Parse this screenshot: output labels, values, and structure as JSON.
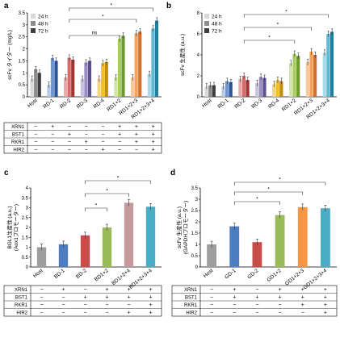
{
  "chart_data": [
    {
      "panel": "a",
      "type": "bar",
      "ylabel": "scFv タイター (mg/L)",
      "ylim": [
        0,
        3.5
      ],
      "yticks": [
        0,
        0.5,
        1,
        1.5,
        2,
        2.5,
        3,
        3.5
      ],
      "tick_labels": [
        "0",
        "0.5",
        "1",
        "1.5",
        "2",
        "2.5",
        "3",
        "3.5"
      ],
      "categories": [
        "Host",
        "RD-1",
        "RD-2",
        "RD-3",
        "RD-4",
        "RD1+2",
        "RD1+2+3",
        "RD1+2+3+4"
      ],
      "legend": [
        "24 h",
        "48 h",
        "72 h"
      ],
      "legend_position": "top-left",
      "series": [
        {
          "name": "24 h",
          "values": [
            0.75,
            0.5,
            0.8,
            0.75,
            0.75,
            0.8,
            0.8,
            0.95
          ]
        },
        {
          "name": "48 h",
          "values": [
            1.15,
            1.62,
            1.63,
            1.43,
            1.4,
            2.42,
            2.65,
            2.85
          ]
        },
        {
          "name": "72 h",
          "values": [
            1.0,
            1.5,
            1.55,
            1.5,
            1.45,
            2.55,
            2.72,
            3.18
          ]
        }
      ],
      "significance": [
        {
          "from": 2,
          "to": 5,
          "label": "ns"
        },
        {
          "from": 2,
          "to": 6,
          "label": "*"
        },
        {
          "from": 2,
          "to": 7,
          "label": "*"
        }
      ],
      "table": {
        "rows": [
          {
            "label": "XRN1",
            "cells": [
              "−",
              "+",
              "−",
              "−",
              "−",
              "+",
              "+",
              "+"
            ]
          },
          {
            "label": "BST1",
            "cells": [
              "−",
              "−",
              "+",
              "−",
              "−",
              "+",
              "+",
              "+"
            ]
          },
          {
            "label": "RKR1",
            "cells": [
              "−",
              "−",
              "−",
              "+",
              "−",
              "−",
              "+",
              "+"
            ]
          },
          {
            "label": "HIR2",
            "cells": [
              "−",
              "−",
              "−",
              "−",
              "+",
              "−",
              "−",
              "+"
            ]
          }
        ]
      }
    },
    {
      "panel": "b",
      "type": "bar",
      "ylabel": "scFv 生産性 (a.u.)",
      "ylim": [
        0,
        8
      ],
      "yticks": [
        0,
        2,
        4,
        6,
        8
      ],
      "tick_labels": [
        "0",
        "2",
        "4",
        "6",
        "8"
      ],
      "categories": [
        "Host",
        "RD-1",
        "RD-2",
        "RD-3",
        "RD-4",
        "RD1+2",
        "RD1+2+3",
        "RD1+2+3+4"
      ],
      "legend": [
        "24 h",
        "48 h",
        "72 h"
      ],
      "legend_position": "top-left",
      "series": [
        {
          "name": "24 h",
          "values": [
            1.0,
            1.0,
            1.7,
            1.3,
            1.2,
            3.2,
            3.3,
            4.2
          ]
        },
        {
          "name": "48 h",
          "values": [
            1.1,
            1.5,
            2.0,
            1.9,
            1.6,
            4.1,
            4.3,
            6.0
          ]
        },
        {
          "name": "72 h",
          "values": [
            1.1,
            1.4,
            1.6,
            1.8,
            1.5,
            3.9,
            4.0,
            6.2
          ]
        }
      ],
      "significance": [
        {
          "from": 2,
          "to": 5,
          "label": "*"
        },
        {
          "from": 2,
          "to": 6,
          "label": "*"
        },
        {
          "from": 2,
          "to": 7,
          "label": "*"
        }
      ]
    },
    {
      "panel": "c",
      "type": "bar",
      "ylabel": "BGL1生産性 (a.u.)",
      "ylabel2": "(Aox1プロモーター)",
      "ylim": [
        0,
        4
      ],
      "yticks": [
        0,
        0.5,
        1,
        1.5,
        2,
        2.5,
        3,
        3.5,
        4
      ],
      "tick_labels": [
        "0",
        "0.5",
        "1",
        "1.5",
        "2",
        "2.5",
        "3",
        "3.5",
        "4"
      ],
      "categories": [
        "Host",
        "BD-1",
        "BD-2",
        "BD1+2",
        "BD1+2+4",
        "BD1+2+3+4"
      ],
      "values": [
        1.0,
        1.15,
        1.6,
        2.0,
        3.25,
        3.05
      ],
      "colors": [
        "#9e9e9e",
        "#4d7cc0",
        "#c84c4a",
        "#9bbb59",
        "#c49a9c",
        "#4bacc6"
      ],
      "significance": [
        {
          "from": 2,
          "to": 3,
          "label": "*"
        },
        {
          "from": 2,
          "to": 4,
          "label": "*"
        },
        {
          "from": 2,
          "to": 5,
          "label": "*"
        }
      ],
      "table": {
        "rows": [
          {
            "label": "XRN1",
            "cells": [
              "−",
              "+",
              "−",
              "+",
              "+",
              "+"
            ]
          },
          {
            "label": "BST1",
            "cells": [
              "−",
              "−",
              "+",
              "+",
              "+",
              "+"
            ]
          },
          {
            "label": "RKR1",
            "cells": [
              "−",
              "−",
              "−",
              "−",
              "−",
              "+"
            ]
          },
          {
            "label": "HIR2",
            "cells": [
              "−",
              "−",
              "−",
              "−",
              "+",
              "+"
            ]
          }
        ]
      }
    },
    {
      "panel": "d",
      "type": "bar",
      "ylabel": "scFv 生産性 (a.u.)",
      "ylabel2": "(GAPDHプロモーター)",
      "ylim": [
        0,
        3.5
      ],
      "yticks": [
        0,
        0.5,
        1,
        1.5,
        2,
        2.5,
        3,
        3.5
      ],
      "tick_labels": [
        "0",
        "0.5",
        "1",
        "1.5",
        "2",
        "2.5",
        "3",
        "3.5"
      ],
      "categories": [
        "Host",
        "GD-1",
        "GD-2",
        "GD1+2",
        "GD1+2+3",
        "GD1+2+3+4"
      ],
      "values": [
        1.0,
        1.8,
        1.1,
        2.3,
        2.65,
        2.6
      ],
      "colors": [
        "#9e9e9e",
        "#4d7cc0",
        "#c84c4a",
        "#9bbb59",
        "#f79646",
        "#4bacc6"
      ],
      "significance": [
        {
          "from": 1,
          "to": 3,
          "label": "*"
        },
        {
          "from": 1,
          "to": 4,
          "label": "*"
        },
        {
          "from": 1,
          "to": 5,
          "label": "*"
        }
      ],
      "table": {
        "rows": [
          {
            "label": "XRN1",
            "cells": [
              "−",
              "+",
              "−",
              "+",
              "+",
              "+"
            ]
          },
          {
            "label": "BST1",
            "cells": [
              "−",
              "+",
              "+",
              "+",
              "+",
              "+"
            ]
          },
          {
            "label": "RKR1",
            "cells": [
              "−",
              "−",
              "−",
              "−",
              "+",
              "+"
            ]
          },
          {
            "label": "HIR2",
            "cells": [
              "−",
              "−",
              "−",
              "−",
              "−",
              "+"
            ]
          }
        ]
      }
    }
  ],
  "colors": {
    "24h": [
      "#d9d9d9",
      "#b7cbe8",
      "#e9a8a7",
      "#c8c2dc",
      "#f6d67a",
      "#d3e4a8",
      "#f8c79a",
      "#a9d9e8"
    ],
    "48h": [
      "#8c8c8c",
      "#6f96d0",
      "#d86b69",
      "#9a8ec2",
      "#f2be2f",
      "#a8cd5e",
      "#f3a25e",
      "#5fb9d4"
    ],
    "72h": [
      "#3d3d3d",
      "#2b5496",
      "#a23432",
      "#5e4f93",
      "#c28d00",
      "#6e9a2c",
      "#d0702c",
      "#1f7f9e"
    ]
  },
  "panel_labels": [
    "a",
    "b",
    "c",
    "d"
  ]
}
